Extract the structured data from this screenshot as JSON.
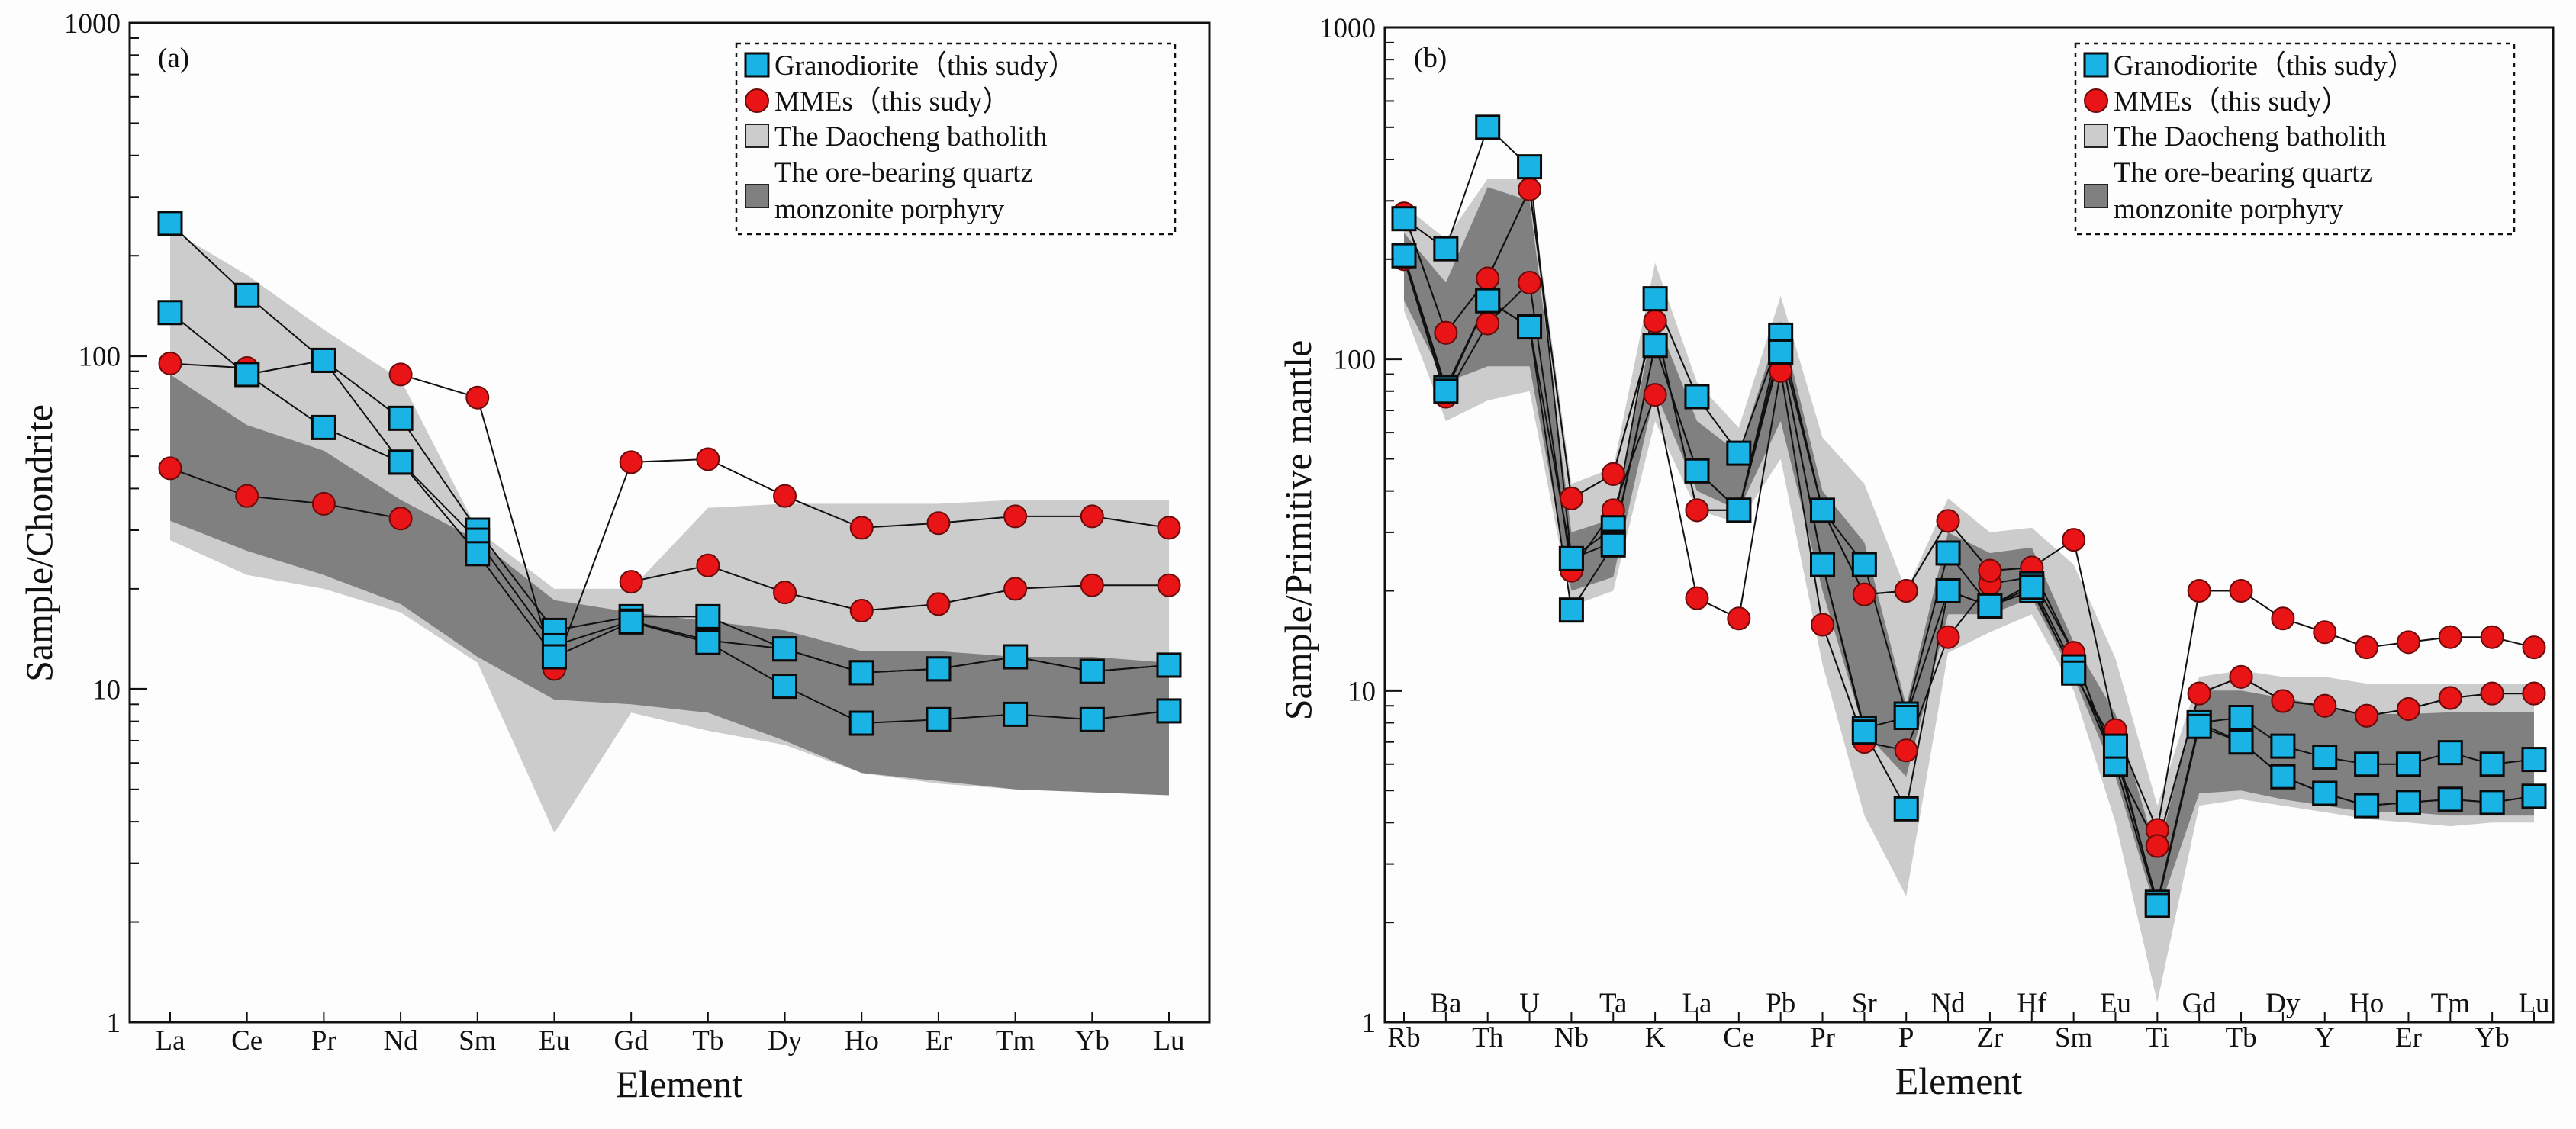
{
  "colors": {
    "granodiorite": "#19b3e6",
    "mmes": "#e81416",
    "daocheng": "#cccccc",
    "ore": "#808080",
    "line": "#111111",
    "background": "#fdfdfd"
  },
  "legend": {
    "granodiorite": "Granodiorite（this sudy）",
    "mmes": "MMEs（this sudy）",
    "daocheng": "The Daocheng batholith",
    "ore_line1": "The ore-bearing quartz",
    "ore_line2": "monzonite porphyry"
  },
  "chart_data": [
    {
      "type": "line",
      "panel_label": "(a)",
      "xlabel": "Element",
      "ylabel": "Sample/Chondrite",
      "yscale": "log",
      "ylim": [
        1,
        1000
      ],
      "yticks": [
        "1",
        "10",
        "100",
        "1000"
      ],
      "categories": [
        "La",
        "Ce",
        "Pr",
        "Nd",
        "Sm",
        "Eu",
        "Gd",
        "Tb",
        "Dy",
        "Ho",
        "Er",
        "Tm",
        "Yb",
        "Lu"
      ],
      "series": [
        {
          "name": "Granodiorite 1",
          "group": "granodiorite",
          "marker": "square",
          "values": [
            250,
            152,
            97,
            65,
            30,
            15,
            16.5,
            16.5,
            13.2,
            11.2,
            11.5,
            12.5,
            11.3,
            11.8
          ]
        },
        {
          "name": "Granodiorite 2",
          "group": "granodiorite",
          "marker": "square",
          "values": [
            135,
            88,
            97,
            48,
            28,
            13.5,
            16,
            14,
            13.2,
            11.2,
            11.5,
            12.5,
            11.3,
            11.8
          ]
        },
        {
          "name": "Granodiorite 3",
          "group": "granodiorite",
          "marker": "square",
          "values": [
            null,
            88,
            61,
            48,
            25.5,
            12.5,
            15.9,
            13.8,
            10.2,
            7.9,
            8.1,
            8.4,
            8.1,
            8.6
          ]
        },
        {
          "name": "MMEs 1",
          "group": "mmes",
          "marker": "circle",
          "values": [
            95,
            92,
            null,
            88,
            75,
            11.5,
            48,
            49,
            38,
            30.5,
            31.5,
            33,
            33,
            30.5
          ]
        },
        {
          "name": "MMEs 2",
          "group": "mmes",
          "marker": "circle",
          "values": [
            46,
            38,
            36,
            32.5,
            null,
            null,
            21,
            23.5,
            19.5,
            17.2,
            18,
            20,
            20.5,
            20.5
          ]
        },
        {
          "name": "MMEs 3",
          "group": "mmes",
          "marker": "circle",
          "values": [
            null,
            null,
            null,
            null,
            null,
            null,
            null,
            null,
            null,
            null,
            null,
            null,
            null,
            null
          ]
        }
      ],
      "bands": [
        {
          "name": "The Daocheng batholith",
          "upper": [
            240,
            175,
            120,
            85,
            30,
            20,
            20,
            35,
            36,
            36,
            36,
            37,
            37,
            37
          ],
          "lower": [
            28,
            22,
            20,
            17,
            12,
            3.7,
            8.5,
            7.5,
            6.8,
            5.6,
            5.2,
            5.0,
            4.9,
            4.9
          ]
        },
        {
          "name": "The ore-bearing quartz monzonite porphyry",
          "upper": [
            88,
            62,
            52,
            37,
            28,
            18.5,
            17,
            16,
            15,
            13,
            13,
            12.5,
            12.5,
            12
          ],
          "lower": [
            32,
            26,
            22,
            18,
            12.5,
            9.3,
            9.0,
            8.5,
            7,
            5.6,
            5.3,
            5.0,
            4.9,
            4.8
          ]
        }
      ]
    },
    {
      "type": "line",
      "panel_label": "(b)",
      "xlabel": "Element",
      "ylabel": "Sample/Primitive mantle",
      "yscale": "log",
      "ylim": [
        1,
        1000
      ],
      "yticks": [
        "1",
        "10",
        "100",
        "1000"
      ],
      "categories": [
        "Rb",
        "Ba",
        "Th",
        "U",
        "Nb",
        "Ta",
        "K",
        "La",
        "Ce",
        "Pb",
        "Pr",
        "Sr",
        "P",
        "Nd",
        "Zr",
        "Hf",
        "Sm",
        "Eu",
        "Ti",
        "Gd",
        "Tb",
        "Dy",
        "Y",
        "Ho",
        "Er",
        "Tm",
        "Yb",
        "Lu"
      ],
      "categories_upper_row": [
        "Ba",
        "U",
        "Ta",
        "La",
        "Pb",
        "Sr",
        "Nd",
        "Hf",
        "Eu",
        "Gd",
        "Dy",
        "Ho",
        "Tm",
        "Lu"
      ],
      "categories_lower_row": [
        "Rb",
        "Th",
        "Nb",
        "K",
        "Ce",
        "Pr",
        "P",
        "Zr",
        "Sm",
        "Ti",
        "Tb",
        "Y",
        "Er",
        "Yb"
      ],
      "series": [
        {
          "name": "Granodiorite 1",
          "group": "granodiorite",
          "marker": "square",
          "values": [
            265,
            215,
            500,
            380,
            25,
            31,
            152,
            77,
            52,
            118,
            35,
            24,
            8.5,
            26,
            18,
            20,
            11.5,
            6.5,
            2.3,
            8,
            8.3,
            6.8,
            6.3,
            6,
            6,
            6.5,
            6,
            6.2
          ]
        },
        {
          "name": "Granodiorite 2",
          "group": "granodiorite",
          "marker": "square",
          "values": [
            205,
            82,
            150,
            125,
            25,
            28,
            110,
            46,
            35,
            105,
            24,
            7.7,
            8.3,
            20,
            18,
            21,
            11.8,
            6,
            2.25,
            8,
            7,
            5.5,
            4.9,
            4.5,
            4.6,
            4.7,
            4.6,
            4.8
          ]
        },
        {
          "name": "Granodiorite 3",
          "group": "granodiorite",
          "marker": "square",
          "values": [
            205,
            80,
            150,
            125,
            17.5,
            27.5,
            110,
            46,
            35,
            105,
            24,
            7.5,
            4.4,
            20,
            18,
            20.5,
            11.3,
            6.8,
            2.25,
            7.8,
            7,
            5.5,
            4.9,
            4.5,
            4.6,
            4.7,
            4.6,
            4.8
          ]
        },
        {
          "name": "MMEs 1",
          "group": "mmes",
          "marker": "circle",
          "values": [
            275,
            120,
            175,
            325,
            38,
            45,
            130,
            35,
            35,
            118,
            35,
            19.5,
            20,
            32.5,
            23,
            23.5,
            28.5,
            7.6,
            3.8,
            20,
            20,
            16.5,
            15,
            13.5,
            14,
            14.5,
            14.5,
            13.5
          ]
        },
        {
          "name": "MMEs 2",
          "group": "mmes",
          "marker": "circle",
          "values": [
            200,
            77,
            128,
            170,
            23,
            35,
            78,
            19,
            16.5,
            92,
            15.8,
            7,
            6.6,
            14.5,
            21,
            22,
            13,
            6.0,
            3.4,
            9.8,
            11,
            9.3,
            9,
            8.4,
            8.8,
            9.5,
            9.8,
            9.8
          ]
        },
        {
          "name": "MMEs 3",
          "group": "mmes",
          "marker": "circle",
          "values": [
            275,
            120,
            175,
            325,
            38,
            45,
            130,
            35,
            35,
            110,
            35,
            19.5,
            20,
            32.5,
            23,
            23.5,
            13,
            6.0,
            3.4,
            9.8,
            11,
            9.3,
            9,
            8.4,
            8.8,
            9.5,
            9.8,
            9.8
          ]
        }
      ],
      "bands": [
        {
          "name": "The Daocheng batholith",
          "upper": [
            290,
            230,
            350,
            350,
            42,
            47,
            195,
            85,
            62,
            155,
            58,
            42,
            20,
            38,
            30,
            31,
            24,
            12.5,
            4.5,
            11,
            11.5,
            11,
            11,
            10.5,
            10.5,
            10.5,
            10.5,
            10.5
          ],
          "lower": [
            140,
            65,
            75,
            80,
            18,
            20,
            65,
            35,
            32,
            50,
            12,
            4.2,
            2.4,
            13,
            15,
            17,
            10,
            4,
            1.15,
            4.5,
            4.7,
            4.5,
            4.3,
            4.1,
            4.0,
            3.9,
            4.0,
            4.0
          ]
        },
        {
          "name": "The ore-bearing quartz monzonite porphyry",
          "upper": [
            240,
            170,
            330,
            300,
            30,
            33,
            135,
            65,
            52,
            130,
            40,
            28,
            9,
            30,
            26,
            27,
            14,
            8.5,
            3.2,
            10,
            10,
            9.5,
            9,
            8.5,
            8.5,
            8.6,
            8.6,
            8.6
          ],
          "lower": [
            150,
            85,
            95,
            95,
            20,
            22,
            80,
            40,
            35,
            65,
            20,
            7.5,
            5.5,
            17,
            17,
            19,
            11,
            5.5,
            2.1,
            4.9,
            5.0,
            4.7,
            4.5,
            4.3,
            4.3,
            4.2,
            4.2,
            4.2
          ]
        }
      ]
    }
  ]
}
